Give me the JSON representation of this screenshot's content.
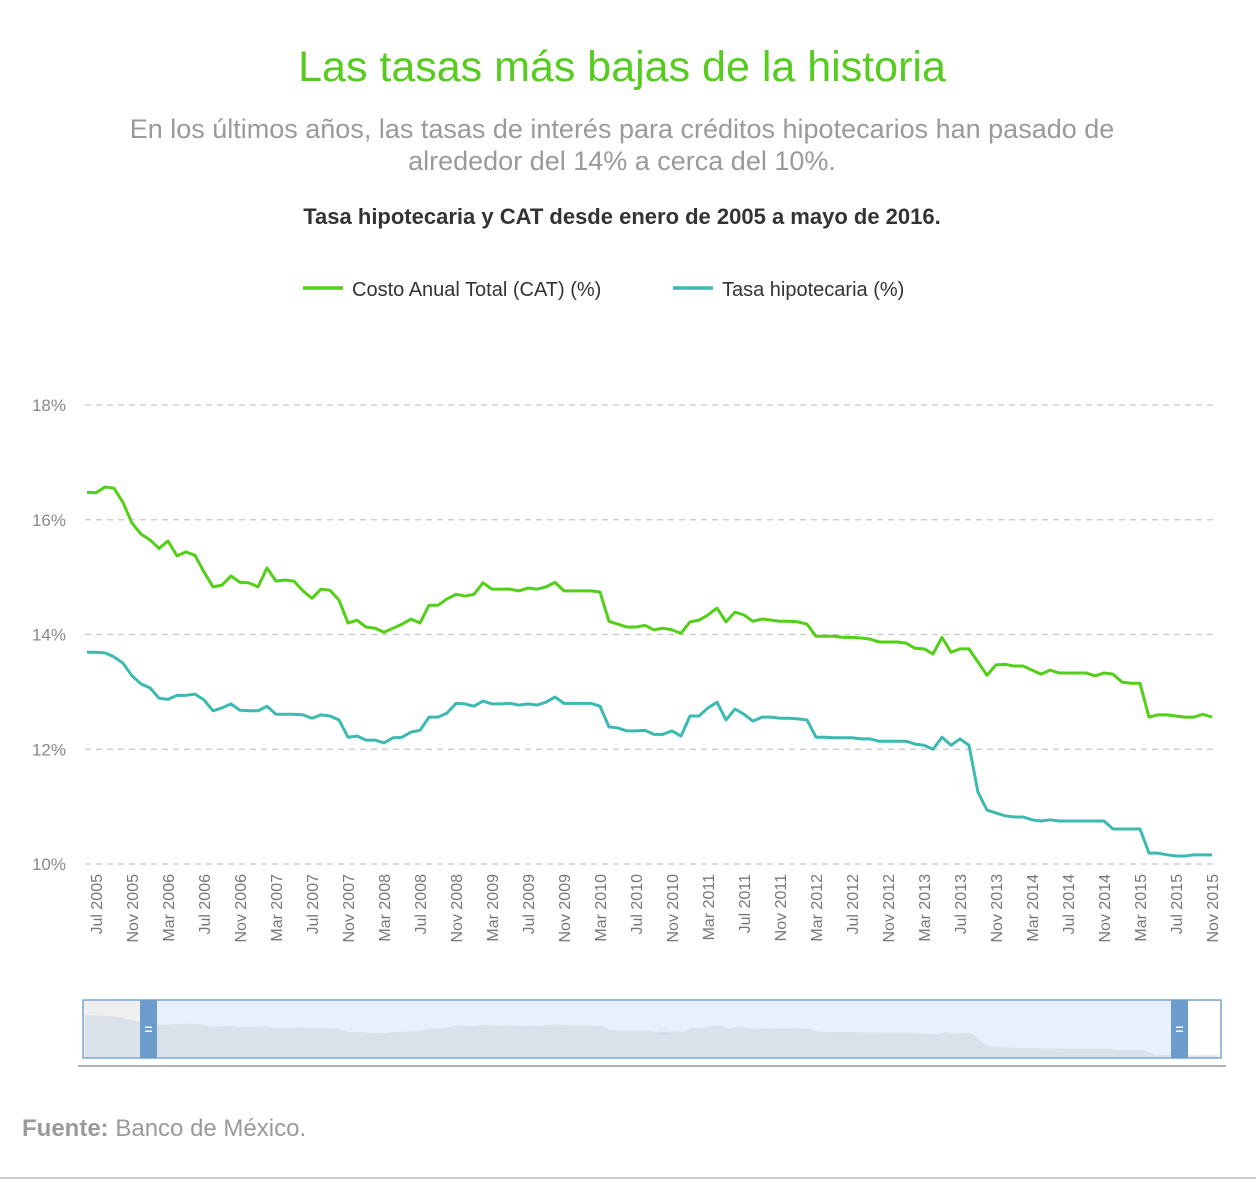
{
  "title": "Las tasas más bajas de la historia",
  "subtitle_lines": [
    "En los últimos años, las tasas de interés para créditos hipotecarios han pasado de",
    "alrededor del 14% a cerca del 10%."
  ],
  "chart_data": {
    "type": "line",
    "title": "Tasa hipotecaria y CAT desde enero de 2005 a mayo de 2016.",
    "categories": [
      null,
      "Jul 2005",
      null,
      null,
      null,
      "Nov 2005",
      null,
      null,
      null,
      "Mar 2006",
      null,
      null,
      null,
      "Jul 2006",
      null,
      null,
      null,
      "Nov 2006",
      null,
      null,
      null,
      "Mar 2007",
      null,
      null,
      null,
      "Jul 2007",
      null,
      null,
      null,
      "Nov 2007",
      null,
      null,
      null,
      "Mar 2008",
      null,
      null,
      null,
      "Jul 2008",
      null,
      null,
      null,
      "Nov 2008",
      null,
      null,
      null,
      "Mar 2009",
      null,
      null,
      null,
      "Jul 2009",
      null,
      null,
      null,
      "Nov 2009",
      null,
      null,
      null,
      "Mar 2010",
      null,
      null,
      null,
      "Jul 2010",
      null,
      null,
      null,
      "Nov 2010",
      null,
      null,
      null,
      "Mar 2011",
      null,
      null,
      null,
      "Jul 2011",
      null,
      null,
      null,
      "Nov 2011",
      null,
      null,
      null,
      "Mar 2012",
      null,
      null,
      null,
      "Jul 2012",
      null,
      null,
      null,
      "Nov 2012",
      null,
      null,
      null,
      "Mar 2013",
      null,
      null,
      null,
      "Jul 2013",
      null,
      null,
      null,
      "Nov 2013",
      null,
      null,
      null,
      "Mar 2014",
      null,
      null,
      null,
      "Jul 2014",
      null,
      null,
      null,
      "Nov 2014",
      null,
      null,
      null,
      "Mar 2015",
      null,
      null,
      null,
      "Jul 2015",
      null,
      null,
      null,
      "Nov 2015"
    ],
    "series": [
      {
        "name": "Costo Anual Total (CAT) (%)",
        "color": "#52cf16",
        "values": [
          16.48,
          16.47,
          16.57,
          16.55,
          16.3,
          15.94,
          15.75,
          15.65,
          15.5,
          15.63,
          15.37,
          15.44,
          15.38,
          15.09,
          14.83,
          14.86,
          15.02,
          14.91,
          14.9,
          14.83,
          15.16,
          14.93,
          14.95,
          14.93,
          14.76,
          14.63,
          14.79,
          14.77,
          14.6,
          14.2,
          14.25,
          14.13,
          14.11,
          14.04,
          14.11,
          14.18,
          14.27,
          14.2,
          14.51,
          14.51,
          14.62,
          14.7,
          14.67,
          14.7,
          14.9,
          14.79,
          14.79,
          14.79,
          14.76,
          14.81,
          14.79,
          14.83,
          14.91,
          14.76,
          14.76,
          14.76,
          14.76,
          14.74,
          14.23,
          14.18,
          14.13,
          14.13,
          14.16,
          14.08,
          14.11,
          14.08,
          14.02,
          14.22,
          14.25,
          14.34,
          14.46,
          14.22,
          14.39,
          14.34,
          14.23,
          14.27,
          14.25,
          14.23,
          14.23,
          14.22,
          14.18,
          13.97,
          13.97,
          13.97,
          13.95,
          13.95,
          13.94,
          13.92,
          13.87,
          13.87,
          13.87,
          13.85,
          13.76,
          13.75,
          13.66,
          13.95,
          13.69,
          13.75,
          13.75,
          13.52,
          13.29,
          13.47,
          13.48,
          13.45,
          13.45,
          13.38,
          13.31,
          13.38,
          13.33,
          13.33,
          13.33,
          13.33,
          13.28,
          13.33,
          13.31,
          13.17,
          13.15,
          13.15,
          12.56,
          12.6,
          12.6,
          12.58,
          12.56,
          12.56,
          12.61,
          12.56
        ]
      },
      {
        "name": "Tasa hipotecaria (%)",
        "color": "#3cbab2",
        "values": [
          13.69,
          13.69,
          13.68,
          13.61,
          13.5,
          13.28,
          13.14,
          13.07,
          12.89,
          12.87,
          12.94,
          12.94,
          12.96,
          12.86,
          12.67,
          12.72,
          12.79,
          12.68,
          12.67,
          12.67,
          12.75,
          12.61,
          12.61,
          12.61,
          12.6,
          12.54,
          12.6,
          12.58,
          12.51,
          12.21,
          12.23,
          12.16,
          12.16,
          12.11,
          12.2,
          12.21,
          12.3,
          12.33,
          12.56,
          12.56,
          12.63,
          12.8,
          12.79,
          12.75,
          12.84,
          12.79,
          12.79,
          12.8,
          12.77,
          12.79,
          12.77,
          12.82,
          12.91,
          12.8,
          12.8,
          12.8,
          12.8,
          12.75,
          12.39,
          12.37,
          12.32,
          12.32,
          12.33,
          12.26,
          12.26,
          12.32,
          12.23,
          12.58,
          12.58,
          12.72,
          12.82,
          12.51,
          12.7,
          12.61,
          12.49,
          12.56,
          12.56,
          12.54,
          12.54,
          12.53,
          12.51,
          12.21,
          12.21,
          12.2,
          12.2,
          12.2,
          12.18,
          12.18,
          12.14,
          12.14,
          12.14,
          12.14,
          12.09,
          12.07,
          12.0,
          12.21,
          12.07,
          12.18,
          12.07,
          11.25,
          10.94,
          10.89,
          10.84,
          10.82,
          10.82,
          10.77,
          10.75,
          10.77,
          10.75,
          10.75,
          10.75,
          10.75,
          10.75,
          10.75,
          10.61,
          10.61,
          10.61,
          10.61,
          10.19,
          10.19,
          10.16,
          10.14,
          10.14,
          10.16,
          10.16,
          10.16
        ]
      }
    ],
    "ylim": [
      10,
      18
    ],
    "yticks": [
      {
        "value": 10,
        "label": "10%"
      },
      {
        "value": 12,
        "label": "12%"
      },
      {
        "value": 14,
        "label": "14%"
      },
      {
        "value": 16,
        "label": "16%"
      },
      {
        "value": 18,
        "label": "18%"
      }
    ],
    "grid": true,
    "legend": "top"
  },
  "source": {
    "label": "Fuente:",
    "text": "Banco de México."
  }
}
